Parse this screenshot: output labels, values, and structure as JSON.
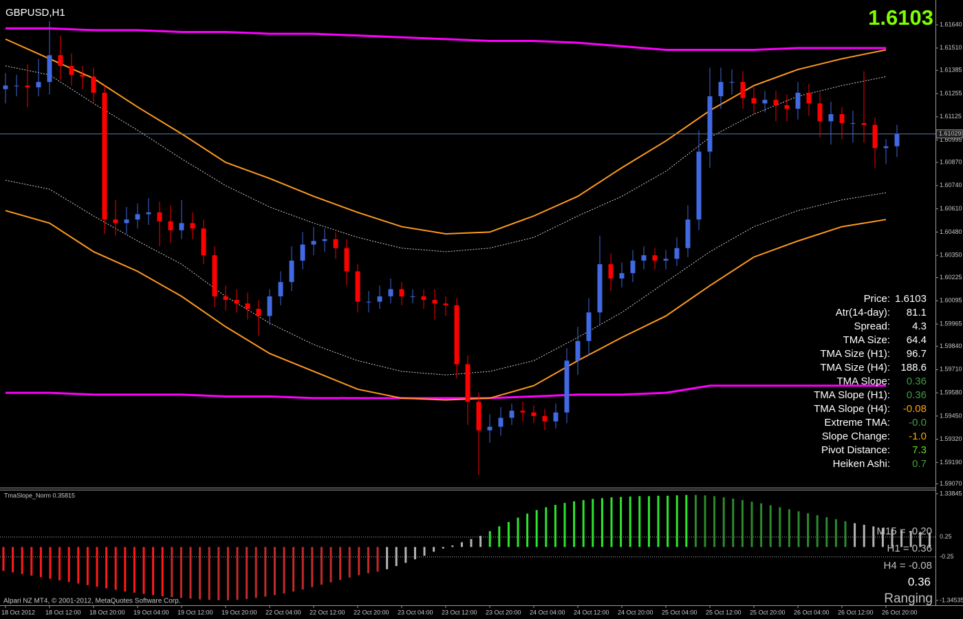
{
  "chart_data": [
    {
      "type": "candlestick",
      "title": "GBPUSD,H1",
      "last_price": 1.6103,
      "bid": 1.61029,
      "up_color": "#4169e1",
      "down_color": "#ff0000",
      "ylim": [
        1.59053,
        1.61779
      ],
      "yticks": [
        {
          "value": 1.6164,
          "label": "1.61640"
        },
        {
          "value": 1.6151,
          "label": "1.61510"
        },
        1.61385,
        1.61255,
        1.61125,
        1.60995,
        {
          "value": 1.6087,
          "label": "1.60870"
        },
        {
          "value": 1.6074,
          "label": "1.60740"
        },
        {
          "value": 1.6061,
          "label": "1.60610"
        },
        {
          "value": 1.6048,
          "label": "1.60480"
        },
        {
          "value": 1.6035,
          "label": "1.60350"
        },
        1.60225,
        1.60095,
        1.59965,
        {
          "value": 1.5984,
          "label": "1.59840"
        },
        {
          "value": 1.5971,
          "label": "1.59710"
        },
        {
          "value": 1.5958,
          "label": "1.59580"
        },
        {
          "value": 1.5945,
          "label": "1.59450"
        },
        {
          "value": 1.5932,
          "label": "1.59320"
        },
        {
          "value": 1.5919,
          "label": "1.59190"
        },
        {
          "value": 1.5907,
          "label": "1.59070"
        }
      ],
      "categories": [
        "18 Oct 2012",
        null,
        null,
        null,
        "18 Oct 12:00",
        null,
        null,
        null,
        "18 Oct 20:00",
        null,
        null,
        null,
        "19 Oct 04:00",
        null,
        null,
        null,
        "19 Oct 12:00",
        null,
        null,
        null,
        "19 Oct 20:00",
        null,
        null,
        null,
        "22 Oct 04:00",
        null,
        null,
        null,
        "22 Oct 12:00",
        null,
        null,
        null,
        "22 Oct 20:00",
        null,
        null,
        null,
        "23 Oct 04:00",
        null,
        null,
        null,
        "23 Oct 12:00",
        null,
        null,
        null,
        "23 Oct 20:00",
        null,
        null,
        null,
        "24 Oct 04:00",
        null,
        null,
        null,
        "24 Oct 12:00",
        null,
        null,
        null,
        "24 Oct 20:00",
        null,
        null,
        null,
        "25 Oct 04:00",
        null,
        null,
        null,
        "25 Oct 12:00",
        null,
        null,
        null,
        "25 Oct 20:00",
        null,
        null,
        null,
        "26 Oct 04:00",
        null,
        null,
        null,
        "26 Oct 12:00",
        null,
        null,
        null,
        "26 Oct 20:00",
        null
      ],
      "open": [
        1.6128,
        1.613,
        1.613,
        1.6129,
        1.6132,
        1.6147,
        1.6141,
        1.6136,
        1.6135,
        1.6126,
        1.6055,
        1.6053,
        1.6055,
        1.6058,
        1.6059,
        1.6054,
        1.6049,
        1.6053,
        1.605,
        1.6035,
        1.6012,
        1.601,
        1.6008,
        1.6005,
        1.6001,
        1.6012,
        1.602,
        1.6032,
        1.6041,
        1.6043,
        1.6044,
        1.6039,
        1.6026,
        1.6009,
        1.6009,
        1.6012,
        1.6016,
        1.6012,
        1.6012,
        1.601,
        1.6008,
        1.6007,
        1.5974,
        1.5953,
        1.5937,
        1.5939,
        1.5944,
        1.5948,
        1.5947,
        1.5945,
        1.5942,
        1.5947,
        1.5976,
        1.5987,
        1.6003,
        1.603,
        1.6022,
        1.6025,
        1.6032,
        1.6035,
        1.6032,
        1.6033,
        1.6039,
        1.6055,
        1.6093,
        1.6124,
        1.6132,
        1.6132,
        1.6123,
        1.612,
        1.6122,
        1.6119,
        1.6117,
        1.6126,
        1.612,
        1.611,
        1.6114,
        1.6109,
        1.6109,
        1.6108,
        1.6095,
        1.6096
      ],
      "high": [
        1.6137,
        1.6136,
        1.6142,
        1.6145,
        1.6166,
        1.6158,
        1.6148,
        1.6141,
        1.614,
        1.613,
        1.6066,
        1.6062,
        1.6064,
        1.6067,
        1.6065,
        1.6063,
        1.6066,
        1.6059,
        1.6055,
        1.604,
        1.6018,
        1.6016,
        1.6014,
        1.601,
        1.6016,
        1.6026,
        1.604,
        1.6048,
        1.6051,
        1.605,
        1.6048,
        1.6044,
        1.603,
        1.6015,
        1.6018,
        1.6022,
        1.602,
        1.6016,
        1.6016,
        1.6016,
        1.6012,
        1.6011,
        1.5979,
        1.5958,
        1.5946,
        1.595,
        1.5952,
        1.5953,
        1.5951,
        1.5949,
        1.5952,
        1.5983,
        1.5995,
        1.6011,
        1.6046,
        1.6036,
        1.6031,
        1.6038,
        1.604,
        1.6039,
        1.6038,
        1.6045,
        1.6063,
        1.6105,
        1.614,
        1.614,
        1.6139,
        1.6138,
        1.6129,
        1.6127,
        1.6127,
        1.6125,
        1.6132,
        1.6131,
        1.6126,
        1.6121,
        1.6118,
        1.6116,
        1.6138,
        1.6112,
        1.61,
        1.6108
      ],
      "low": [
        1.612,
        1.6124,
        1.6118,
        1.6124,
        1.6125,
        1.6133,
        1.613,
        1.6128,
        1.612,
        1.6047,
        1.6046,
        1.6047,
        1.605,
        1.6052,
        1.604,
        1.6042,
        1.6044,
        1.6044,
        1.603,
        1.6006,
        1.6004,
        1.6003,
        1.5999,
        1.599,
        1.5996,
        1.6007,
        1.6015,
        1.6027,
        1.6035,
        1.6037,
        1.6033,
        1.6018,
        1.6003,
        1.6003,
        1.6005,
        1.6008,
        1.6007,
        1.6008,
        1.6005,
        1.5999,
        1.6001,
        1.5966,
        1.594,
        1.5912,
        1.593,
        1.5934,
        1.594,
        1.5942,
        1.5941,
        1.5937,
        1.5938,
        1.5941,
        1.5968,
        1.5979,
        1.5996,
        1.6015,
        1.6017,
        1.602,
        1.6027,
        1.6027,
        1.6027,
        1.6029,
        1.6034,
        1.6049,
        1.6084,
        1.6117,
        1.6125,
        1.6117,
        1.6114,
        1.6115,
        1.611,
        1.611,
        1.6111,
        1.6113,
        1.6101,
        1.6097,
        1.61,
        1.6098,
        1.6098,
        1.6084,
        1.6086,
        1.609
      ],
      "close": [
        1.613,
        1.613,
        1.6129,
        1.6132,
        1.6147,
        1.6141,
        1.6136,
        1.6135,
        1.6126,
        1.6055,
        1.6053,
        1.6055,
        1.6058,
        1.6059,
        1.6054,
        1.6049,
        1.6053,
        1.605,
        1.6035,
        1.6012,
        1.601,
        1.6008,
        1.6005,
        1.6001,
        1.6012,
        1.602,
        1.6032,
        1.6041,
        1.6043,
        1.6044,
        1.6039,
        1.6026,
        1.6009,
        1.6009,
        1.6012,
        1.6016,
        1.6012,
        1.6012,
        1.601,
        1.6008,
        1.6007,
        1.5974,
        1.5953,
        1.5937,
        1.5939,
        1.5944,
        1.5948,
        1.5947,
        1.5945,
        1.5942,
        1.5947,
        1.5976,
        1.5987,
        1.6003,
        1.603,
        1.6022,
        1.6025,
        1.6032,
        1.6035,
        1.6032,
        1.6033,
        1.6039,
        1.6055,
        1.6093,
        1.6124,
        1.6132,
        1.6132,
        1.6123,
        1.612,
        1.6122,
        1.6119,
        1.6117,
        1.6126,
        1.612,
        1.611,
        1.6114,
        1.6109,
        1.6109,
        1.6108,
        1.6095,
        1.6096,
        1.6103
      ],
      "bands": [
        {
          "color": "#ff00ff",
          "width": 3,
          "dashed": false,
          "values": [
            1.6162,
            1.6162,
            1.6161,
            1.6161,
            1.616,
            1.616,
            1.6159,
            1.6159,
            1.6158,
            1.6157,
            1.6156,
            1.6155,
            1.6155,
            1.6154,
            1.6152,
            1.615,
            1.615,
            1.615,
            1.6151,
            1.6151,
            1.6151
          ]
        },
        {
          "color": "#ff00ff",
          "width": 3,
          "dashed": false,
          "values": [
            1.5958,
            1.5958,
            1.5957,
            1.5957,
            1.5957,
            1.5956,
            1.5956,
            1.5955,
            1.5955,
            1.5955,
            1.5955,
            1.5955,
            1.5956,
            1.5957,
            1.5957,
            1.5958,
            1.5962,
            1.5962,
            1.5962,
            1.5962,
            1.5962
          ]
        },
        {
          "color": "#ff9a1f",
          "width": 2,
          "dashed": false,
          "values": [
            1.6156,
            1.6145,
            1.6134,
            1.6118,
            1.6103,
            1.6087,
            1.6078,
            1.6068,
            1.6059,
            1.6051,
            1.6047,
            1.6048,
            1.6057,
            1.6068,
            1.6084,
            1.6099,
            1.6116,
            1.613,
            1.6139,
            1.6145,
            1.615
          ]
        },
        {
          "color": "#ff9a1f",
          "width": 2,
          "dashed": false,
          "values": [
            1.606,
            1.6053,
            1.6037,
            1.6026,
            1.6012,
            1.5995,
            1.598,
            1.597,
            1.596,
            1.5955,
            1.5954,
            1.5955,
            1.5962,
            1.5976,
            1.5989,
            1.6001,
            1.6018,
            1.6034,
            1.6043,
            1.6051,
            1.6055
          ]
        },
        {
          "color": "#cfcfcf",
          "width": 1,
          "dashed": true,
          "values": [
            1.6141,
            1.6136,
            1.612,
            1.6105,
            1.6089,
            1.6074,
            1.6062,
            1.6053,
            1.6045,
            1.6039,
            1.6037,
            1.6039,
            1.6045,
            1.6057,
            1.6068,
            1.6082,
            1.6101,
            1.6114,
            1.6124,
            1.613,
            1.6135
          ]
        },
        {
          "color": "#cfcfcf",
          "width": 1,
          "dashed": true,
          "values": [
            1.6077,
            1.6072,
            1.6057,
            1.6043,
            1.603,
            1.6012,
            1.5997,
            1.5985,
            1.5976,
            1.597,
            1.5968,
            1.597,
            1.5976,
            1.5989,
            1.6003,
            1.602,
            1.6037,
            1.6051,
            1.606,
            1.6066,
            1.607
          ]
        }
      ],
      "info_panel": {
        "rows": [
          {
            "label": "Price:",
            "value": "1.6103",
            "color": "#ffffff"
          },
          {
            "label": "Atr(14-day):",
            "value": "81.1",
            "color": "#ffffff"
          },
          {
            "label": "Spread:",
            "value": "4.3",
            "color": "#ffffff"
          },
          {
            "label": "TMA Size:",
            "value": "64.4",
            "color": "#ffffff"
          },
          {
            "label": "TMA Size (H1):",
            "value": "96.7",
            "color": "#ffffff"
          },
          {
            "label": "TMA Size (H4):",
            "value": "188.6",
            "color": "#ffffff"
          },
          {
            "label": "TMA Slope:",
            "value": "0.36",
            "color": "#3f9f3f"
          },
          {
            "label": "TMA Slope (H1):",
            "value": "0.36",
            "color": "#3f9f3f"
          },
          {
            "label": "TMA Slope (H4):",
            "value": "-0.08",
            "color": "#ffa500"
          },
          {
            "label": "Extreme TMA:",
            "value": "-0.0",
            "color": "#3f9f3f"
          },
          {
            "label": "Slope Change:",
            "value": "-1.0",
            "color": "#ffa500"
          },
          {
            "label": "Pivot Distance:",
            "value": "7.3",
            "color": "#66dd22"
          },
          {
            "label": "Heiken Ashi:",
            "value": "0.7",
            "color": "#3f9f3f"
          }
        ]
      }
    },
    {
      "type": "bar",
      "title": "TmaSlope_Norm 0.35815",
      "ylim": [
        -1.34535,
        1.33845
      ],
      "yticks": [
        1.33845,
        0.25,
        -0.25,
        -1.34535
      ],
      "series": [
        {
          "color": "#ff1a1a",
          "values": [
            -0.6,
            -0.64,
            -0.68,
            -0.72,
            -0.76,
            -0.8,
            -0.84,
            -0.88,
            -0.92,
            -0.96,
            -1.0,
            -1.04,
            -1.08,
            -1.12,
            -1.15,
            -1.18,
            -1.21,
            -1.24
          ]
        },
        {
          "color": "#c42a2a",
          "values": [
            -1.26,
            -1.28,
            -1.3,
            -1.32,
            -1.33,
            -1.34,
            -1.34,
            -1.33,
            -1.31,
            -1.28,
            -1.25,
            -1.21,
            -1.17,
            -1.12,
            -1.07,
            -1.01,
            -0.95,
            -0.89,
            -0.83,
            -0.77,
            -0.71,
            -0.66,
            -0.62
          ]
        },
        {
          "color": "#b4b4b4",
          "values": [
            -0.56,
            -0.48,
            -0.4,
            -0.31,
            -0.22,
            -0.12,
            -0.04,
            0.04,
            0.12,
            0.2,
            0.28
          ]
        },
        {
          "color": "#2ee52e",
          "values": [
            0.4,
            0.52,
            0.63,
            0.74,
            0.84,
            0.93,
            1.0,
            1.06,
            1.11,
            1.15,
            1.18,
            1.21,
            1.23,
            1.25,
            1.26,
            1.27,
            1.28,
            1.28,
            1.29,
            1.29,
            1.3,
            1.31
          ]
        },
        {
          "color": "#2d8a2d",
          "values": [
            1.31,
            1.3,
            1.28,
            1.25,
            1.22,
            1.18,
            1.14,
            1.1,
            1.05,
            1.0,
            0.95,
            0.9,
            0.85,
            0.8,
            0.75,
            0.7,
            0.65
          ]
        },
        {
          "color": "#b4b4b4",
          "values": [
            0.6,
            0.56,
            0.52,
            0.48,
            0.45,
            0.42,
            0.4,
            0.38,
            0.36
          ]
        }
      ],
      "side_labels": [
        "M15 = -0.20",
        "H1 = 0.36",
        "H4 = -0.08"
      ],
      "status_value": 0.36,
      "status": "Ranging"
    }
  ],
  "footer": {
    "copyright": "Alpari NZ MT4, © 2001-2012, MetaQuotes Software Corp."
  }
}
